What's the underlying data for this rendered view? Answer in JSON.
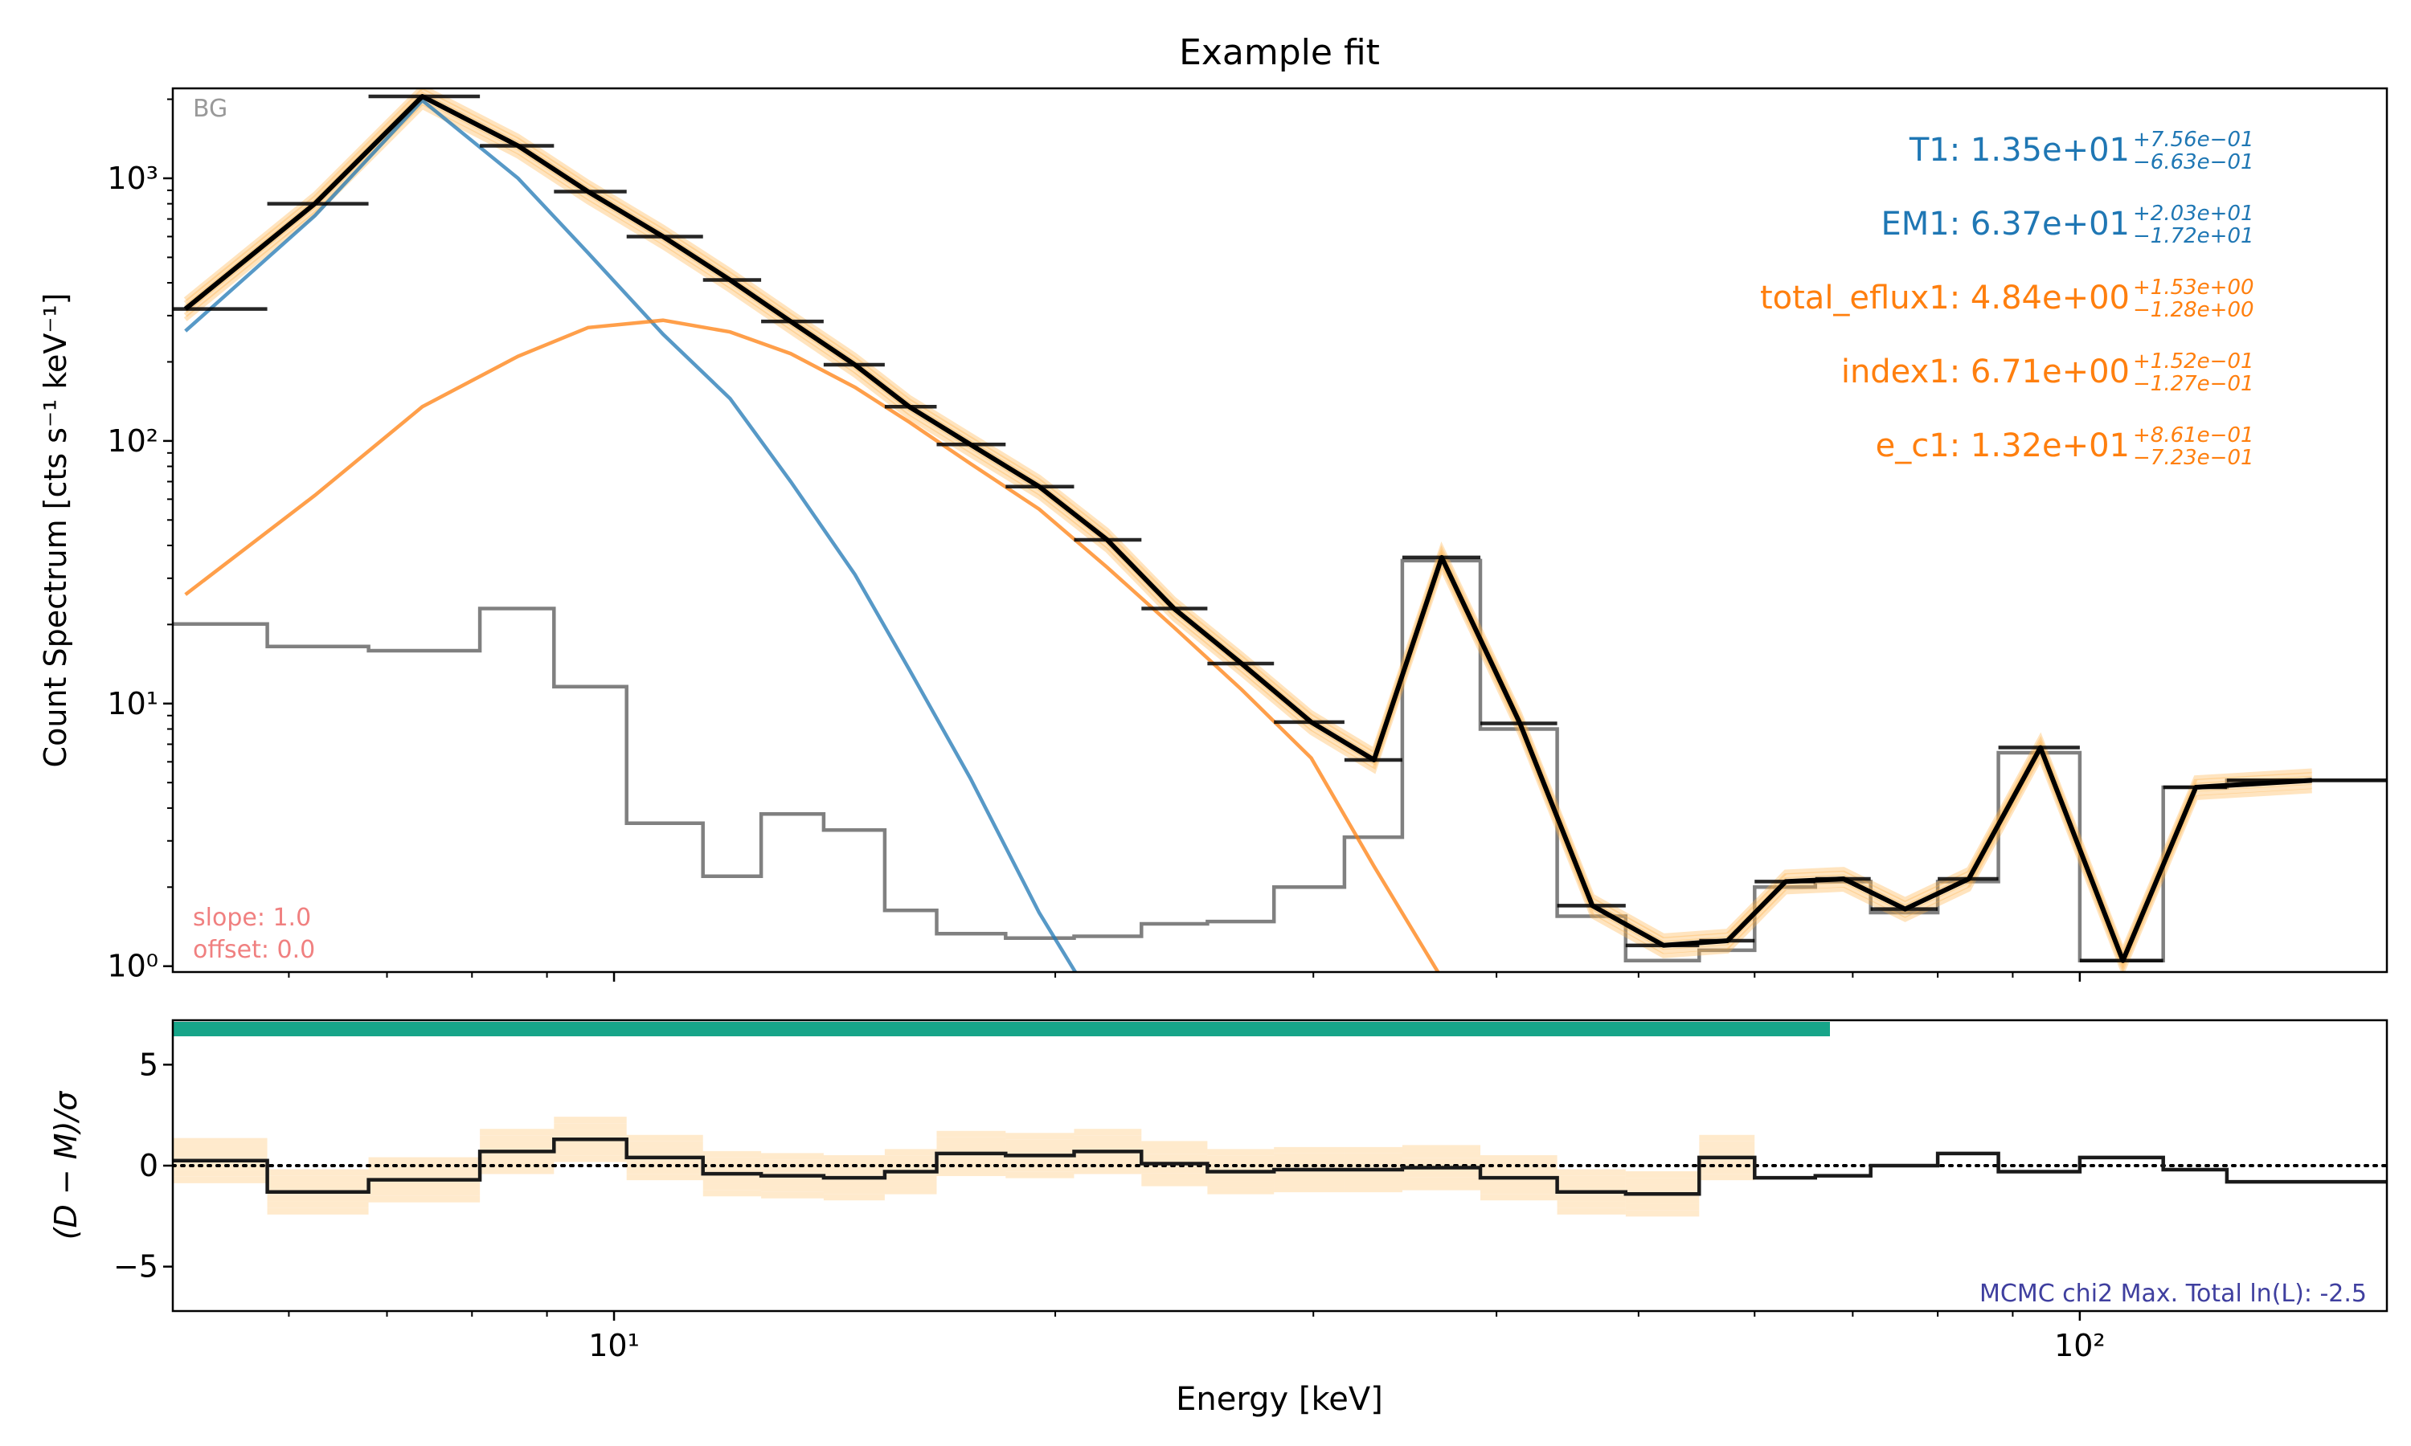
{
  "chart_data": [
    {
      "type": "line",
      "title": "Example fit",
      "xlabel": "",
      "ylabel": "Count Spectrum [cts s⁻¹ keV⁻¹]",
      "xscale": "log",
      "yscale": "log",
      "xlim": [
        5.0,
        162.0
      ],
      "ylim": [
        0.95,
        2200
      ],
      "x_ticks": [
        {
          "value": 10,
          "label": "10¹"
        },
        {
          "value": 100,
          "label": "10²"
        }
      ],
      "y_ticks": [
        {
          "value": 1,
          "label": "10⁰"
        },
        {
          "value": 10,
          "label": "10¹"
        },
        {
          "value": 100,
          "label": "10²"
        },
        {
          "value": 1000,
          "label": "10³"
        }
      ],
      "corner_label": "BG",
      "colors": {
        "thermal": "#1f77b4",
        "nonthermal": "#ff7f0e",
        "background": "#808080",
        "model": "#000000",
        "samples": "#ffb347",
        "calibration": "#f08080",
        "accent": "#17a589",
        "stat": "#3f3f9f"
      },
      "parameters": [
        {
          "name": "T1",
          "value": "1.35e+01",
          "plus": "+7.56e−01",
          "minus": "−6.63e−01",
          "color": "#1f77b4"
        },
        {
          "name": "EM1",
          "value": "6.37e+01",
          "plus": "+2.03e+01",
          "minus": "−1.72e+01",
          "color": "#1f77b4"
        },
        {
          "name": "total_eflux1",
          "value": "4.84e+00",
          "plus": "+1.53e+00",
          "minus": "−1.28e+00",
          "color": "#ff7f0e"
        },
        {
          "name": "index1",
          "value": "6.71e+00",
          "plus": "+1.52e−01",
          "minus": "−1.27e−01",
          "color": "#ff7f0e"
        },
        {
          "name": "e_c1",
          "value": "1.32e+01",
          "plus": "+8.61e−01",
          "minus": "−7.23e−01",
          "color": "#ff7f0e"
        }
      ],
      "calibration": {
        "slope": "slope: 1.0",
        "offset": "offset: 0.0"
      },
      "bin_edges": [
        4.5,
        5.8,
        6.8,
        8.1,
        9.1,
        10.2,
        11.5,
        12.6,
        13.9,
        15.3,
        16.6,
        18.5,
        20.6,
        22.9,
        25.4,
        28.2,
        31.5,
        34.5,
        39.0,
        44.0,
        49.0,
        55.0,
        60.0,
        66.0,
        72.0,
        80.0,
        88.0,
        100.0,
        114.0,
        126.0,
        162.0
      ],
      "data_counts": [
        318,
        800,
        2050,
        1330,
        890,
        600,
        410,
        285,
        195,
        135,
        97,
        67,
        42,
        23,
        14.2,
        8.5,
        6.1,
        36,
        8.4,
        1.7,
        1.2,
        1.25,
        2.1,
        2.15,
        1.65,
        2.15,
        6.8,
        1.05,
        4.8,
        5.1
      ],
      "background_counts": [
        20.1,
        16.5,
        15.9,
        23.0,
        11.6,
        3.5,
        2.2,
        3.8,
        3.3,
        1.63,
        1.33,
        1.28,
        1.3,
        1.45,
        1.48,
        2.0,
        3.1,
        35,
        8.0,
        1.55,
        1.05,
        1.15,
        2.0,
        2.1,
        1.6,
        2.1,
        6.5,
        1.05,
        4.8,
        5.1
      ],
      "series": [
        {
          "name": "",
          "color": "#000000",
          "x": [
            5.1,
            6.25,
            7.4,
            8.6,
            9.6,
            10.8,
            12.0,
            13.2,
            14.6,
            15.9,
            17.5,
            19.5,
            21.7,
            24.1,
            26.8,
            29.9,
            33.0,
            36.7,
            41.5,
            46.5,
            52.0,
            57.5,
            63.0,
            69.0,
            76.0,
            84.0,
            94.0,
            107.0,
            120.0,
            144.0
          ],
          "y": [
            318,
            800,
            2050,
            1330,
            890,
            600,
            410,
            285,
            195,
            135,
            97,
            67,
            42,
            23,
            14.2,
            8.5,
            6.1,
            36,
            8.4,
            1.7,
            1.2,
            1.25,
            2.1,
            2.15,
            1.65,
            2.15,
            6.8,
            1.05,
            4.8,
            5.1
          ]
        },
        {
          "name": "",
          "color": "#1f77b4",
          "x": [
            5.1,
            6.25,
            7.4,
            8.6,
            9.6,
            10.8,
            12.0,
            13.2,
            14.6,
            15.9,
            17.5,
            19.5,
            21.7
          ],
          "y": [
            262,
            720,
            1980,
            1000,
            520,
            255,
            145,
            70,
            31,
            13.5,
            5.2,
            1.6,
            0.6
          ]
        },
        {
          "name": "",
          "color": "#ff7f0e",
          "x": [
            5.1,
            6.25,
            7.4,
            8.6,
            9.6,
            10.8,
            12.0,
            13.2,
            14.6,
            15.9,
            17.5,
            19.5,
            21.7,
            24.1,
            26.8,
            29.9,
            33.0,
            36.7
          ],
          "y": [
            26,
            62,
            135,
            210,
            270,
            288,
            260,
            215,
            160,
            118,
            82,
            55,
            33,
            19.5,
            11.3,
            6.2,
            2.4,
            0.9
          ]
        }
      ]
    },
    {
      "type": "line",
      "title": "",
      "xlabel": "Energy [keV]",
      "ylabel": "(D − M)/σ",
      "xscale": "log",
      "ylim": [
        -7.2,
        7.2
      ],
      "y_ticks": [
        {
          "value": 5,
          "label": "5"
        },
        {
          "value": 0,
          "label": "0"
        },
        {
          "value": -5,
          "label": "−5"
        }
      ],
      "fit_range_keV": [
        5.0,
        60.0
      ],
      "stat_label": "MCMC chi2 Max. Total ln(L): -2.5",
      "residuals": [
        0.25,
        -1.3,
        -0.7,
        0.7,
        1.3,
        0.4,
        -0.4,
        -0.5,
        -0.6,
        -0.3,
        0.6,
        0.5,
        0.7,
        0.1,
        -0.3,
        -0.2,
        -0.2,
        -0.1,
        -0.6,
        -1.3,
        -1.4,
        0.4,
        -0.6,
        -0.5,
        0.0,
        0.6,
        -0.3,
        0.4,
        -0.2,
        -0.8
      ]
    }
  ]
}
